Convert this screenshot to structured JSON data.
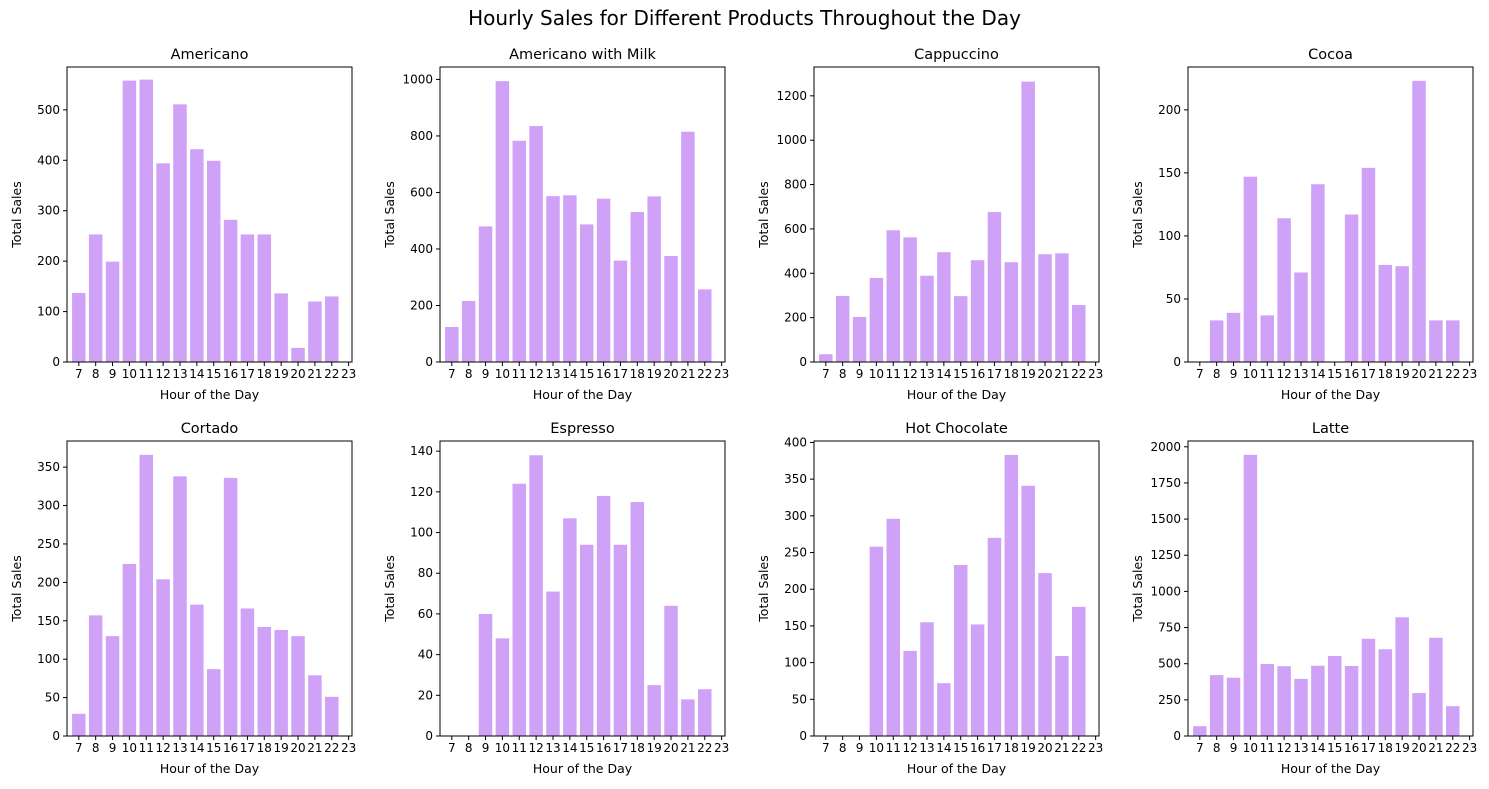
{
  "title": "Hourly Sales for Different Products Throughout the Day",
  "chart_data": [
    {
      "type": "bar",
      "title": "Americano",
      "xlabel": "Hour of the Day",
      "ylabel": "Total Sales",
      "bar_color": "#cfa2f7",
      "x_ticks": [
        7,
        8,
        9,
        10,
        11,
        12,
        13,
        14,
        15,
        16,
        17,
        18,
        19,
        20,
        21,
        22,
        23
      ],
      "y_ticks": [
        0,
        100,
        200,
        300,
        400,
        500
      ],
      "ylim": [
        0,
        585
      ],
      "x": [
        7,
        8,
        9,
        10,
        11,
        12,
        13,
        14,
        15,
        16,
        17,
        18,
        19,
        20,
        21,
        22
      ],
      "values": [
        137,
        253,
        199,
        558,
        560,
        394,
        511,
        422,
        399,
        282,
        253,
        253,
        136,
        28,
        120,
        130
      ]
    },
    {
      "type": "bar",
      "title": "Americano with Milk",
      "xlabel": "Hour of the Day",
      "ylabel": "Total Sales",
      "bar_color": "#cfa2f7",
      "x_ticks": [
        7,
        8,
        9,
        10,
        11,
        12,
        13,
        14,
        15,
        16,
        17,
        18,
        19,
        20,
        21,
        22,
        23
      ],
      "y_ticks": [
        0,
        200,
        400,
        600,
        800,
        1000
      ],
      "ylim": [
        0,
        1044
      ],
      "x": [
        7,
        8,
        9,
        10,
        11,
        12,
        13,
        14,
        15,
        16,
        17,
        18,
        19,
        20,
        21,
        22
      ],
      "values": [
        124,
        216,
        480,
        994,
        783,
        835,
        587,
        590,
        487,
        578,
        359,
        531,
        586,
        375,
        815,
        257
      ]
    },
    {
      "type": "bar",
      "title": "Cappuccino",
      "xlabel": "Hour of the Day",
      "ylabel": "Total Sales",
      "bar_color": "#cfa2f7",
      "x_ticks": [
        7,
        8,
        9,
        10,
        11,
        12,
        13,
        14,
        15,
        16,
        17,
        18,
        19,
        20,
        21,
        22,
        23
      ],
      "y_ticks": [
        0,
        200,
        400,
        600,
        800,
        1000,
        1200
      ],
      "ylim": [
        0,
        1330
      ],
      "x": [
        7,
        8,
        9,
        10,
        11,
        12,
        13,
        14,
        15,
        16,
        17,
        18,
        19,
        20,
        21,
        22
      ],
      "values": [
        35,
        298,
        203,
        379,
        594,
        562,
        389,
        495,
        297,
        459,
        676,
        450,
        1264,
        486,
        490,
        257
      ]
    },
    {
      "type": "bar",
      "title": "Cocoa",
      "xlabel": "Hour of the Day",
      "ylabel": "Total Sales",
      "bar_color": "#cfa2f7",
      "x_ticks": [
        7,
        8,
        9,
        10,
        11,
        12,
        13,
        14,
        15,
        16,
        17,
        18,
        19,
        20,
        21,
        22,
        23
      ],
      "y_ticks": [
        0,
        50,
        100,
        150,
        200
      ],
      "ylim": [
        0,
        234
      ],
      "x": [
        8,
        9,
        10,
        11,
        12,
        13,
        14,
        16,
        17,
        18,
        19,
        20,
        21,
        22
      ],
      "values": [
        33,
        39,
        147,
        37,
        114,
        71,
        141,
        117,
        154,
        77,
        76,
        223,
        33,
        33
      ]
    },
    {
      "type": "bar",
      "title": "Cortado",
      "xlabel": "Hour of the Day",
      "ylabel": "Total Sales",
      "bar_color": "#cfa2f7",
      "x_ticks": [
        7,
        8,
        9,
        10,
        11,
        12,
        13,
        14,
        15,
        16,
        17,
        18,
        19,
        20,
        21,
        22,
        23
      ],
      "y_ticks": [
        0,
        50,
        100,
        150,
        200,
        250,
        300,
        350
      ],
      "ylim": [
        0,
        384
      ],
      "x": [
        7,
        8,
        9,
        10,
        11,
        12,
        13,
        14,
        15,
        16,
        17,
        18,
        19,
        20,
        21,
        22
      ],
      "values": [
        29,
        157,
        130,
        224,
        366,
        204,
        338,
        171,
        87,
        336,
        166,
        142,
        138,
        130,
        79,
        51
      ]
    },
    {
      "type": "bar",
      "title": "Espresso",
      "xlabel": "Hour of the Day",
      "ylabel": "Total Sales",
      "bar_color": "#cfa2f7",
      "x_ticks": [
        7,
        8,
        9,
        10,
        11,
        12,
        13,
        14,
        15,
        16,
        17,
        18,
        19,
        20,
        21,
        22,
        23
      ],
      "y_ticks": [
        0,
        20,
        40,
        60,
        80,
        100,
        120,
        140
      ],
      "ylim": [
        0,
        145
      ],
      "x": [
        9,
        10,
        11,
        12,
        13,
        14,
        15,
        16,
        17,
        18,
        19,
        20,
        21,
        22
      ],
      "values": [
        60,
        48,
        124,
        138,
        71,
        107,
        94,
        118,
        94,
        115,
        25,
        64,
        18,
        23
      ]
    },
    {
      "type": "bar",
      "title": "Hot Chocolate",
      "xlabel": "Hour of the Day",
      "ylabel": "Total Sales",
      "bar_color": "#cfa2f7",
      "x_ticks": [
        7,
        8,
        9,
        10,
        11,
        12,
        13,
        14,
        15,
        16,
        17,
        18,
        19,
        20,
        21,
        22,
        23
      ],
      "y_ticks": [
        0,
        50,
        100,
        150,
        200,
        250,
        300,
        350,
        400
      ],
      "ylim": [
        0,
        402
      ],
      "x": [
        10,
        11,
        12,
        13,
        14,
        15,
        16,
        17,
        18,
        19,
        20,
        21,
        22
      ],
      "values": [
        258,
        296,
        116,
        155,
        72,
        233,
        152,
        270,
        383,
        341,
        222,
        109,
        176
      ]
    },
    {
      "type": "bar",
      "title": "Latte",
      "xlabel": "Hour of the Day",
      "ylabel": "Total Sales",
      "bar_color": "#cfa2f7",
      "x_ticks": [
        7,
        8,
        9,
        10,
        11,
        12,
        13,
        14,
        15,
        16,
        17,
        18,
        19,
        20,
        21,
        22,
        23
      ],
      "y_ticks": [
        0,
        250,
        500,
        750,
        1000,
        1250,
        1500,
        1750,
        2000
      ],
      "ylim": [
        0,
        2040
      ],
      "x": [
        7,
        8,
        9,
        10,
        11,
        12,
        13,
        14,
        15,
        16,
        17,
        18,
        19,
        20,
        21,
        22
      ],
      "values": [
        68,
        421,
        403,
        1944,
        498,
        483,
        395,
        486,
        553,
        484,
        672,
        600,
        821,
        297,
        679,
        206
      ]
    }
  ]
}
